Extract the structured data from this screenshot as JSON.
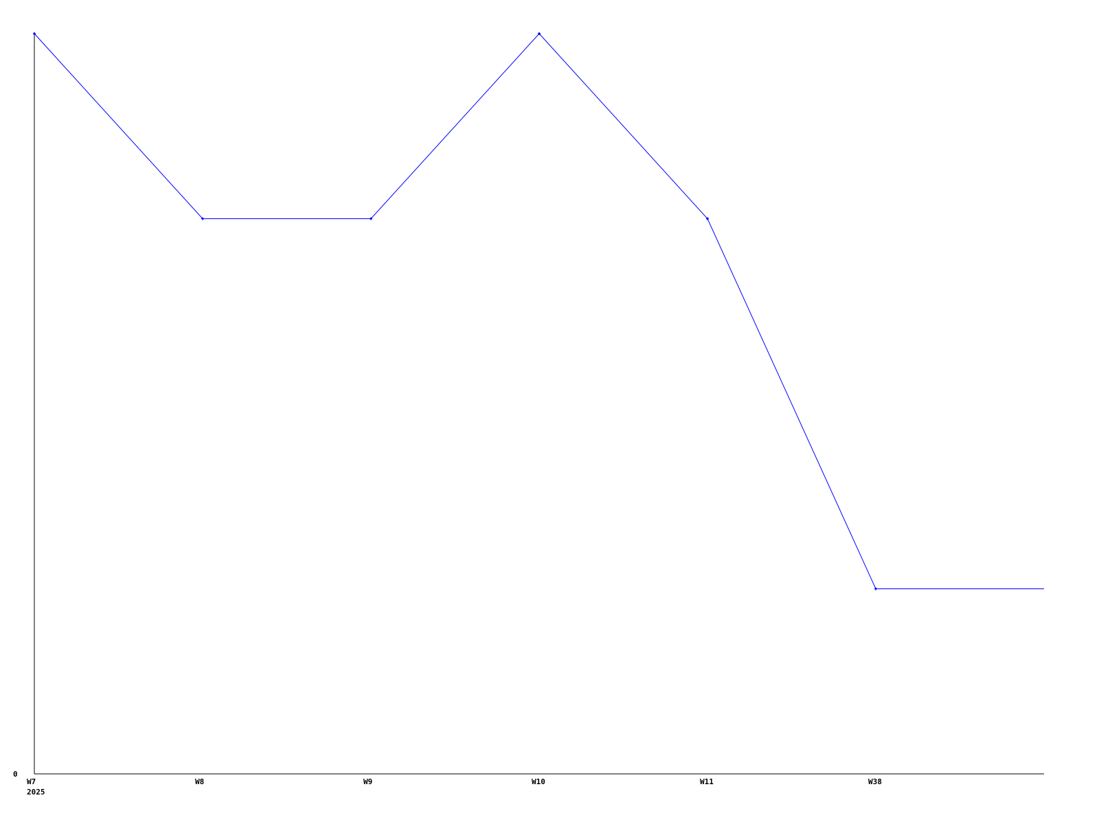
{
  "chart_data": {
    "type": "line",
    "categories": [
      "W7",
      "W8",
      "W9",
      "W10",
      "W11",
      "W38"
    ],
    "x_sublabel": "2025",
    "values": [
      4,
      3,
      3,
      4,
      3,
      1
    ],
    "ylim": [
      0,
      4
    ],
    "y_ticks": [
      "0"
    ],
    "grid": false,
    "legend": "none",
    "colors": {
      "series": "#0000ff",
      "axis": "#000000"
    }
  }
}
